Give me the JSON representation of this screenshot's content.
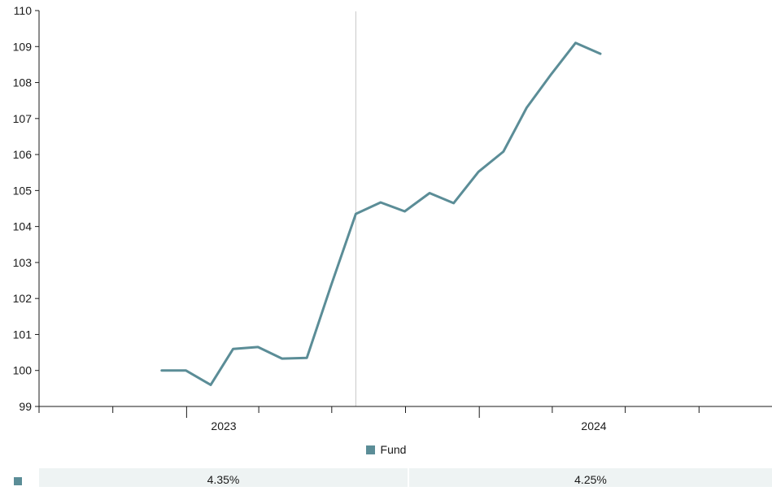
{
  "colors": {
    "series": "#5b8d97",
    "axis": "#1a1a1a",
    "divider": "#c8c8c8",
    "cell_bg": "#eef3f3"
  },
  "chart_data": {
    "type": "line",
    "title": "",
    "xlabel": "",
    "ylabel": "",
    "x_tick_labels": [
      "2023",
      "2024"
    ],
    "y_ticks": [
      99,
      100,
      101,
      102,
      103,
      104,
      105,
      106,
      107,
      108,
      109,
      110
    ],
    "ylim": [
      99,
      110
    ],
    "xlim": [
      "2022-07-01",
      "2024-12-31"
    ],
    "grid": false,
    "legend": "bottom-center",
    "series": [
      {
        "name": "Fund",
        "color": "#5b8d97",
        "points": [
          {
            "x": "2022-12-01",
            "y": 100.0
          },
          {
            "x": "2022-12-31",
            "y": 100.0
          },
          {
            "x": "2023-01-31",
            "y": 99.6
          },
          {
            "x": "2023-02-28",
            "y": 100.6
          },
          {
            "x": "2023-03-31",
            "y": 100.65
          },
          {
            "x": "2023-04-30",
            "y": 100.33
          },
          {
            "x": "2023-05-31",
            "y": 100.35
          },
          {
            "x": "2023-06-30",
            "y": 102.35
          },
          {
            "x": "2023-07-31",
            "y": 104.35
          },
          {
            "x": "2023-08-31",
            "y": 104.67
          },
          {
            "x": "2023-09-30",
            "y": 104.42
          },
          {
            "x": "2023-10-31",
            "y": 104.93
          },
          {
            "x": "2023-11-30",
            "y": 104.65
          },
          {
            "x": "2023-12-31",
            "y": 105.52
          },
          {
            "x": "2024-01-31",
            "y": 106.08
          },
          {
            "x": "2024-02-29",
            "y": 107.3
          },
          {
            "x": "2024-03-31",
            "y": 108.24
          },
          {
            "x": "2024-04-30",
            "y": 109.1
          },
          {
            "x": "2024-05-31",
            "y": 108.8
          }
        ]
      }
    ]
  },
  "legend": {
    "label": "Fund"
  },
  "returns_row": {
    "values": [
      "4.35%",
      "4.25%"
    ]
  }
}
